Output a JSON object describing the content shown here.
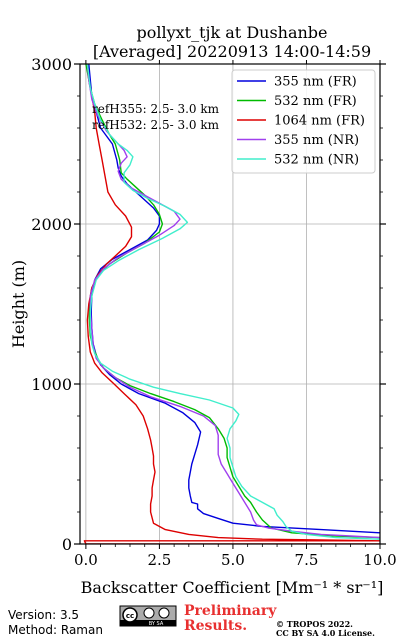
{
  "chart_data": {
    "type": "line",
    "title": [
      "pollyxt_tjk at Dushanbe",
      "[Averaged] 20220913 14:00-14:59"
    ],
    "xlabel": "Backscatter Coefficient [Mm⁻¹ * sr⁻¹]",
    "ylabel": "Height (m)",
    "xlim": [
      -0.2,
      10.0
    ],
    "ylim": [
      0,
      3000
    ],
    "xticks": [
      0.0,
      2.5,
      5.0,
      7.5,
      10.0
    ],
    "xtick_labels": [
      "0.0",
      "2.5",
      "5.0",
      "7.5",
      "10.0"
    ],
    "yticks": [
      0,
      1000,
      2000,
      3000
    ],
    "ytick_labels": [
      "0",
      "1000",
      "2000",
      "3000"
    ],
    "grid": true,
    "legend_position": "top-right",
    "annotations": [
      "refH355:  2.5- 3.0 km",
      "refH532:  2.5- 3.0 km"
    ],
    "series": [
      {
        "name": "355 nm (FR)",
        "color": "#0000dd",
        "points": [
          [
            10.0,
            70
          ],
          [
            8.0,
            90
          ],
          [
            6.0,
            110
          ],
          [
            5.0,
            130
          ],
          [
            4.5,
            160
          ],
          [
            4.0,
            190
          ],
          [
            3.8,
            220
          ],
          [
            3.8,
            250
          ],
          [
            3.6,
            260
          ],
          [
            3.55,
            300
          ],
          [
            3.5,
            350
          ],
          [
            3.5,
            400
          ],
          [
            3.55,
            450
          ],
          [
            3.6,
            500
          ],
          [
            3.7,
            560
          ],
          [
            3.8,
            620
          ],
          [
            3.9,
            700
          ],
          [
            3.7,
            760
          ],
          [
            3.3,
            820
          ],
          [
            2.7,
            880
          ],
          [
            1.8,
            940
          ],
          [
            1.2,
            1000
          ],
          [
            0.8,
            1060
          ],
          [
            0.5,
            1120
          ],
          [
            0.35,
            1180
          ],
          [
            0.25,
            1250
          ],
          [
            0.2,
            1350
          ],
          [
            0.18,
            1450
          ],
          [
            0.2,
            1550
          ],
          [
            0.3,
            1650
          ],
          [
            0.5,
            1720
          ],
          [
            0.9,
            1780
          ],
          [
            1.5,
            1840
          ],
          [
            2.1,
            1900
          ],
          [
            2.4,
            1960
          ],
          [
            2.5,
            2000
          ],
          [
            2.5,
            2050
          ],
          [
            2.3,
            2100
          ],
          [
            2.0,
            2150
          ],
          [
            1.7,
            2200
          ],
          [
            1.4,
            2250
          ],
          [
            1.2,
            2300
          ],
          [
            1.1,
            2350
          ],
          [
            1.05,
            2400
          ],
          [
            0.9,
            2500
          ],
          [
            0.7,
            2550
          ],
          [
            0.5,
            2600
          ],
          [
            0.35,
            2700
          ],
          [
            0.2,
            2800
          ],
          [
            0.15,
            2900
          ],
          [
            0.1,
            3000
          ]
        ]
      },
      {
        "name": "532 nm (FR)",
        "color": "#00bb00",
        "points": [
          [
            10.0,
            40
          ],
          [
            8.5,
            50
          ],
          [
            7.0,
            70
          ],
          [
            6.3,
            100
          ],
          [
            6.0,
            150
          ],
          [
            5.8,
            200
          ],
          [
            5.6,
            260
          ],
          [
            5.4,
            300
          ],
          [
            5.2,
            360
          ],
          [
            5.0,
            420
          ],
          [
            4.9,
            480
          ],
          [
            4.8,
            540
          ],
          [
            4.8,
            600
          ],
          [
            4.7,
            660
          ],
          [
            4.5,
            720
          ],
          [
            4.2,
            790
          ],
          [
            3.7,
            840
          ],
          [
            3.0,
            890
          ],
          [
            2.2,
            940
          ],
          [
            1.5,
            990
          ],
          [
            1.0,
            1040
          ],
          [
            0.6,
            1100
          ],
          [
            0.4,
            1160
          ],
          [
            0.25,
            1230
          ],
          [
            0.15,
            1300
          ],
          [
            0.12,
            1400
          ],
          [
            0.12,
            1500
          ],
          [
            0.2,
            1600
          ],
          [
            0.4,
            1680
          ],
          [
            0.8,
            1750
          ],
          [
            1.4,
            1820
          ],
          [
            2.0,
            1880
          ],
          [
            2.5,
            1950
          ],
          [
            2.6,
            2000
          ],
          [
            2.5,
            2060
          ],
          [
            2.3,
            2120
          ],
          [
            2.0,
            2180
          ],
          [
            1.7,
            2230
          ],
          [
            1.4,
            2280
          ],
          [
            1.2,
            2320
          ],
          [
            1.15,
            2400
          ],
          [
            1.0,
            2500
          ],
          [
            0.8,
            2560
          ],
          [
            0.55,
            2650
          ],
          [
            0.3,
            2750
          ],
          [
            0.15,
            2850
          ],
          [
            0.05,
            2950
          ],
          [
            0.0,
            3000
          ]
        ]
      },
      {
        "name": "1064 nm (FR)",
        "color": "#dd0000",
        "points": [
          [
            10.0,
            0
          ],
          [
            5.0,
            0
          ],
          [
            1.0,
            0
          ],
          [
            0.0,
            0
          ],
          [
            -0.05,
            20
          ],
          [
            10.0,
            20
          ],
          [
            8.0,
            25
          ],
          [
            6.0,
            30
          ],
          [
            4.5,
            40
          ],
          [
            3.5,
            60
          ],
          [
            2.7,
            90
          ],
          [
            2.3,
            130
          ],
          [
            2.2,
            200
          ],
          [
            2.2,
            250
          ],
          [
            2.25,
            300
          ],
          [
            2.25,
            350
          ],
          [
            2.3,
            400
          ],
          [
            2.35,
            450
          ],
          [
            2.3,
            500
          ],
          [
            2.3,
            550
          ],
          [
            2.25,
            600
          ],
          [
            2.2,
            650
          ],
          [
            2.1,
            720
          ],
          [
            1.95,
            800
          ],
          [
            1.7,
            870
          ],
          [
            1.3,
            940
          ],
          [
            0.9,
            1010
          ],
          [
            0.55,
            1070
          ],
          [
            0.3,
            1130
          ],
          [
            0.15,
            1200
          ],
          [
            0.08,
            1300
          ],
          [
            0.05,
            1400
          ],
          [
            0.1,
            1500
          ],
          [
            0.2,
            1600
          ],
          [
            0.4,
            1680
          ],
          [
            0.7,
            1750
          ],
          [
            1.0,
            1800
          ],
          [
            1.35,
            1860
          ],
          [
            1.55,
            1920
          ],
          [
            1.55,
            1980
          ],
          [
            1.35,
            2050
          ],
          [
            1.0,
            2120
          ],
          [
            0.75,
            2200
          ],
          [
            0.65,
            2300
          ],
          [
            0.55,
            2400
          ],
          [
            0.45,
            2500
          ],
          [
            0.35,
            2600
          ],
          [
            0.3,
            2700
          ],
          [
            0.2,
            2800
          ],
          [
            0.1,
            2900
          ],
          [
            0.05,
            3000
          ]
        ]
      },
      {
        "name": "355 nm (NR)",
        "color": "#a040ee",
        "points": [
          [
            10.0,
            40
          ],
          [
            9.0,
            50
          ],
          [
            8.0,
            60
          ],
          [
            7.0,
            80
          ],
          [
            6.2,
            100
          ],
          [
            5.8,
            120
          ],
          [
            5.7,
            150
          ],
          [
            5.6,
            200
          ],
          [
            5.4,
            260
          ],
          [
            5.2,
            320
          ],
          [
            5.0,
            380
          ],
          [
            4.8,
            440
          ],
          [
            4.6,
            500
          ],
          [
            4.5,
            560
          ],
          [
            4.5,
            620
          ],
          [
            4.5,
            680
          ],
          [
            4.4,
            740
          ],
          [
            4.0,
            800
          ],
          [
            3.2,
            860
          ],
          [
            2.2,
            920
          ],
          [
            1.5,
            980
          ],
          [
            1.0,
            1040
          ],
          [
            0.6,
            1100
          ],
          [
            0.35,
            1160
          ],
          [
            0.25,
            1240
          ],
          [
            0.2,
            1350
          ],
          [
            0.15,
            1450
          ],
          [
            0.15,
            1550
          ],
          [
            0.3,
            1650
          ],
          [
            0.6,
            1720
          ],
          [
            1.1,
            1790
          ],
          [
            1.8,
            1860
          ],
          [
            2.5,
            1930
          ],
          [
            3.0,
            1990
          ],
          [
            3.2,
            2030
          ],
          [
            3.0,
            2080
          ],
          [
            2.5,
            2130
          ],
          [
            2.0,
            2180
          ],
          [
            1.5,
            2230
          ],
          [
            1.2,
            2280
          ],
          [
            1.1,
            2330
          ],
          [
            1.2,
            2380
          ],
          [
            1.4,
            2420
          ],
          [
            1.3,
            2460
          ],
          [
            1.0,
            2520
          ],
          [
            0.7,
            2580
          ],
          [
            0.4,
            2680
          ],
          [
            0.2,
            2780
          ],
          [
            0.1,
            2900
          ],
          [
            0.05,
            3000
          ]
        ]
      },
      {
        "name": "532 nm (NR)",
        "color": "#40eecc",
        "points": [
          [
            10.0,
            30
          ],
          [
            8.5,
            40
          ],
          [
            7.5,
            60
          ],
          [
            7.0,
            80
          ],
          [
            6.8,
            110
          ],
          [
            6.7,
            140
          ],
          [
            6.5,
            180
          ],
          [
            6.4,
            220
          ],
          [
            6.0,
            260
          ],
          [
            5.6,
            300
          ],
          [
            5.3,
            360
          ],
          [
            5.1,
            420
          ],
          [
            5.0,
            480
          ],
          [
            4.9,
            540
          ],
          [
            4.9,
            600
          ],
          [
            4.8,
            660
          ],
          [
            4.9,
            720
          ],
          [
            5.1,
            770
          ],
          [
            5.2,
            810
          ],
          [
            5.0,
            850
          ],
          [
            4.2,
            900
          ],
          [
            3.2,
            940
          ],
          [
            2.3,
            980
          ],
          [
            1.5,
            1030
          ],
          [
            0.9,
            1080
          ],
          [
            0.5,
            1130
          ],
          [
            0.3,
            1190
          ],
          [
            0.2,
            1250
          ],
          [
            0.15,
            1350
          ],
          [
            0.15,
            1450
          ],
          [
            0.2,
            1550
          ],
          [
            0.35,
            1650
          ],
          [
            0.6,
            1710
          ],
          [
            1.1,
            1770
          ],
          [
            1.8,
            1840
          ],
          [
            2.6,
            1910
          ],
          [
            3.2,
            1970
          ],
          [
            3.45,
            2010
          ],
          [
            3.2,
            2060
          ],
          [
            2.7,
            2110
          ],
          [
            2.1,
            2160
          ],
          [
            1.6,
            2210
          ],
          [
            1.3,
            2260
          ],
          [
            1.3,
            2320
          ],
          [
            1.5,
            2370
          ],
          [
            1.6,
            2420
          ],
          [
            1.4,
            2460
          ],
          [
            1.1,
            2500
          ],
          [
            0.8,
            2560
          ],
          [
            0.5,
            2650
          ],
          [
            0.3,
            2750
          ],
          [
            0.15,
            2850
          ],
          [
            0.05,
            3000
          ]
        ]
      }
    ]
  },
  "footer": {
    "version": "Version: 3.5",
    "method": "Method: Raman",
    "preliminary_line1": "Preliminary",
    "preliminary_line2": "Results.",
    "license_line1": "© TROPOS 2022.",
    "license_line2": "CC BY SA 4.0 License.",
    "license_badge_text": "BY  SA",
    "colors": {
      "preliminary": "#e83030"
    }
  }
}
